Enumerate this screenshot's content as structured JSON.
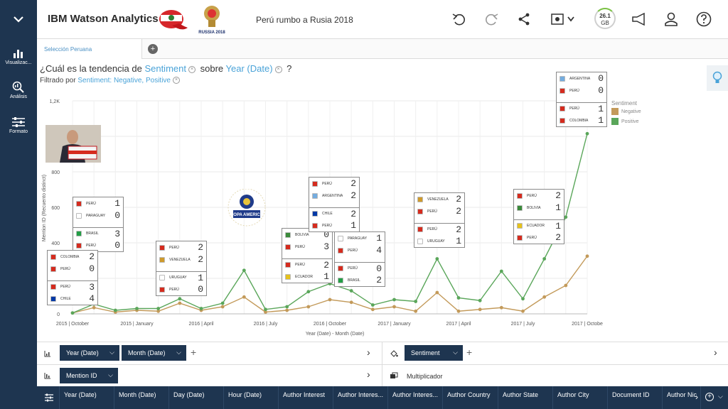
{
  "app": {
    "brand": "IBM Watson Analytics",
    "project_title": "Perú rumbo a Rusia 2018",
    "wc_logo_text": "RUSSIA 2018",
    "storage_value": "26.1",
    "storage_unit": "GB"
  },
  "sidebar": [
    {
      "label": "Visualizac...",
      "icon": "bar-chart-icon"
    },
    {
      "label": "Análisis",
      "icon": "magnifier-chart-icon"
    },
    {
      "label": "Formato",
      "icon": "sliders-icon"
    }
  ],
  "tab": {
    "label": "Selección Peruana"
  },
  "question": {
    "prefix": "¿Cuál es la tendencia de",
    "measure": "Sentiment",
    "connector": "sobre",
    "dimension": "Year (Date)",
    "suffix": "?"
  },
  "filter": {
    "prefix": "Filtrado por",
    "value": "Sentiment: Negative, Positive"
  },
  "copa_text": "COPA AMERICA",
  "chart_data": {
    "type": "line",
    "xlabel": "Year (Date) - Month (Date)",
    "ylabel": "Mention ID (Recuento distinct)",
    "ylim": [
      0,
      1200
    ],
    "yticks": [
      "0",
      "200",
      "400",
      "600",
      "800",
      "1K",
      "1,2K"
    ],
    "xtick_labels": [
      {
        "i": 0,
        "label": "2015 | October"
      },
      {
        "i": 3,
        "label": "2015 | January"
      },
      {
        "i": 6,
        "label": "2016 | April"
      },
      {
        "i": 9,
        "label": "2016 | July"
      },
      {
        "i": 12,
        "label": "2016 | October"
      },
      {
        "i": 15,
        "label": "2017 | January"
      },
      {
        "i": 18,
        "label": "2017 | April"
      },
      {
        "i": 21,
        "label": "2017 | July"
      },
      {
        "i": 24,
        "label": "2017 | Octobe"
      }
    ],
    "legend_title": "Sentiment",
    "series": [
      {
        "name": "Negative",
        "color": "#c39a5a",
        "values": [
          5,
          35,
          10,
          20,
          15,
          60,
          20,
          40,
          95,
          10,
          20,
          40,
          80,
          65,
          25,
          40,
          15,
          120,
          15,
          25,
          35,
          15,
          95,
          160,
          325
        ]
      },
      {
        "name": "Positive",
        "color": "#5aa65a",
        "values": [
          5,
          55,
          20,
          30,
          30,
          85,
          30,
          60,
          245,
          25,
          40,
          125,
          170,
          130,
          50,
          80,
          70,
          310,
          90,
          75,
          240,
          85,
          310,
          545,
          1015
        ]
      }
    ]
  },
  "cards": [
    {
      "rows": [
        {
          "team": "PERÚ",
          "score": "1",
          "flag": "#d52b1e"
        },
        {
          "team": "PARAGUAY",
          "score": "0",
          "flag": "#ffffff"
        },
        {
          "team": "BRASIL",
          "score": "3",
          "flag": "#229e45"
        },
        {
          "team": "PERÚ",
          "score": "0",
          "flag": "#d52b1e"
        }
      ]
    },
    {
      "rows": [
        {
          "team": "COLOMBIA",
          "score": "2",
          "flag": "#d52b1e"
        },
        {
          "team": "PERÚ",
          "score": "0",
          "flag": "#d52b1e"
        },
        {
          "team": "PERÚ",
          "score": "3",
          "flag": "#d52b1e"
        },
        {
          "team": "CHILE",
          "score": "4",
          "flag": "#0039a6"
        }
      ]
    },
    {
      "rows": [
        {
          "team": "PERÚ",
          "score": "2",
          "flag": "#d52b1e"
        },
        {
          "team": "VENEZUELA",
          "score": "2",
          "flag": "#cf9a2b"
        },
        {
          "team": "URUGUAY",
          "score": "1",
          "flag": "#ffffff"
        },
        {
          "team": "PERÚ",
          "score": "0",
          "flag": "#d52b1e"
        }
      ]
    },
    {
      "rows": [
        {
          "team": "BOLIVIA",
          "score": "0",
          "flag": "#3a8a3a"
        },
        {
          "team": "PERÚ",
          "score": "3",
          "flag": "#d52b1e"
        },
        {
          "team": "PERÚ",
          "score": "2",
          "flag": "#d52b1e"
        },
        {
          "team": "ECUADOR",
          "score": "1",
          "flag": "#e6c21c"
        }
      ]
    },
    {
      "rows": [
        {
          "team": "PERÚ",
          "score": "2",
          "flag": "#d52b1e"
        },
        {
          "team": "ARGENTINA",
          "score": "2",
          "flag": "#74acdf"
        },
        {
          "team": "CHILE",
          "score": "2",
          "flag": "#0039a6"
        },
        {
          "team": "PERÚ",
          "score": "1",
          "flag": "#d52b1e"
        }
      ]
    },
    {
      "rows": [
        {
          "team": "PARAGUAY",
          "score": "1",
          "flag": "#ffffff"
        },
        {
          "team": "PERÚ",
          "score": "4",
          "flag": "#d52b1e"
        },
        {
          "team": "PERÚ",
          "score": "0",
          "flag": "#d52b1e"
        },
        {
          "team": "BRASIL",
          "score": "2",
          "flag": "#229e45"
        }
      ]
    },
    {
      "rows": [
        {
          "team": "VENEZUELA",
          "score": "2",
          "flag": "#cf9a2b"
        },
        {
          "team": "PERÚ",
          "score": "2",
          "flag": "#d52b1e"
        },
        {
          "team": "PERÚ",
          "score": "2",
          "flag": "#d52b1e"
        },
        {
          "team": "URUGUAY",
          "score": "1",
          "flag": "#ffffff"
        }
      ]
    },
    {
      "rows": [
        {
          "team": "PERÚ",
          "score": "2",
          "flag": "#d52b1e"
        },
        {
          "team": "BOLIVIA",
          "score": "1",
          "flag": "#3a8a3a"
        },
        {
          "team": "ECUADOR",
          "score": "1",
          "flag": "#e6c21c"
        },
        {
          "team": "PERÚ",
          "score": "2",
          "flag": "#d52b1e"
        }
      ]
    },
    {
      "rows": [
        {
          "team": "ARGENTINA",
          "score": "0",
          "flag": "#74acdf"
        },
        {
          "team": "PERÚ",
          "score": "0",
          "flag": "#d52b1e"
        },
        {
          "team": "PERÚ",
          "score": "1",
          "flag": "#d52b1e"
        },
        {
          "team": "COLOMBIA",
          "score": "1",
          "flag": "#d52b1e"
        }
      ]
    }
  ],
  "wells": {
    "row1_pills": [
      "Year (Date)",
      "Month (Date)"
    ],
    "row1_right_pill": "Sentiment",
    "row2_pill": "Mention ID",
    "row2_right_label": "Multiplicador"
  },
  "columns": [
    "Year (Date)",
    "Month (Date)",
    "Day (Date)",
    "Hour (Date)",
    "Author Interest",
    "Author Interes...",
    "Author Interes...",
    "Author Country",
    "Author State",
    "Author City",
    "Document ID",
    "Author Nic"
  ]
}
